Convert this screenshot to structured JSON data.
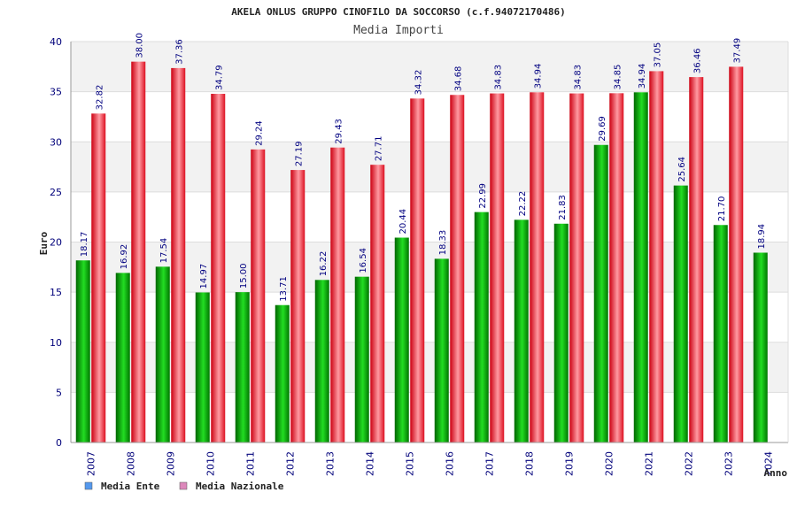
{
  "chart_data": {
    "type": "bar",
    "title": "AKELA ONLUS GRUPPO CINOFILO DA SOCCORSO (c.f.94072170486)",
    "subtitle": "Media Importi",
    "xlabel": "Anno",
    "ylabel": "Euro",
    "ylim": [
      0,
      40
    ],
    "yticks": [
      0,
      5,
      10,
      15,
      20,
      25,
      30,
      35,
      40
    ],
    "grid": true,
    "legend_position": "bottom-left",
    "categories": [
      "2007",
      "2008",
      "2009",
      "2010",
      "2011",
      "2012",
      "2013",
      "2014",
      "2015",
      "2016",
      "2017",
      "2018",
      "2019",
      "2020",
      "2021",
      "2022",
      "2023",
      "2024"
    ],
    "series": [
      {
        "name": "Media Ente",
        "color": "#00bb00",
        "legend_color": "#5599ee",
        "values": [
          18.17,
          16.92,
          17.54,
          14.97,
          15.0,
          13.71,
          16.22,
          16.54,
          20.44,
          18.33,
          22.99,
          22.22,
          21.83,
          29.69,
          34.94,
          25.64,
          21.7,
          18.94
        ],
        "labels": [
          "18.17",
          "16.92",
          "17.54",
          "14.97",
          "15.00",
          "13.71",
          "16.22",
          "16.54",
          "20.44",
          "18.33",
          "22.99",
          "22.22",
          "21.83",
          "29.69",
          "34.94",
          "25.64",
          "21.70",
          "18.94"
        ]
      },
      {
        "name": "Media Nazionale",
        "color": "#ee2233",
        "legend_color": "#dd88bb",
        "values": [
          32.82,
          38.0,
          37.36,
          34.79,
          29.24,
          27.19,
          29.43,
          27.71,
          34.32,
          34.68,
          34.83,
          34.94,
          34.83,
          34.85,
          37.05,
          36.46,
          37.49,
          null
        ],
        "labels": [
          "32.82",
          "38.00",
          "37.36",
          "34.79",
          "29.24",
          "27.19",
          "29.43",
          "27.71",
          "34.32",
          "34.68",
          "34.83",
          "34.94",
          "34.83",
          "34.85",
          "37.05",
          "36.46",
          "37.49",
          null
        ]
      }
    ]
  }
}
